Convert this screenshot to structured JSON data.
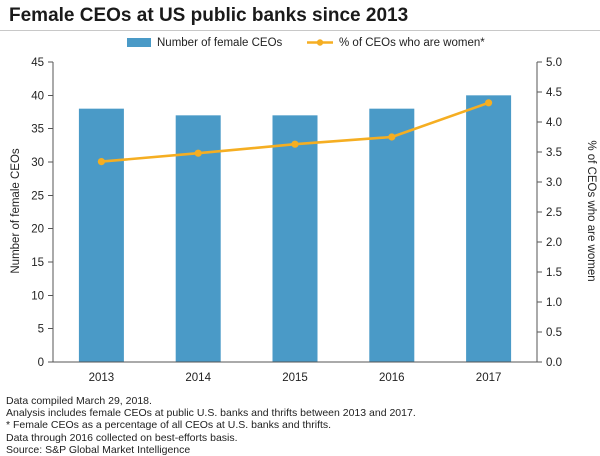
{
  "chart_data": {
    "type": "bar",
    "title": "Female CEOs at US public banks since 2013",
    "categories": [
      "2013",
      "2014",
      "2015",
      "2016",
      "2017"
    ],
    "series": [
      {
        "name": "Number of female CEOs",
        "type": "bar",
        "axis": "left",
        "color": "#4a9ac7",
        "values": [
          38,
          37,
          37,
          38,
          40
        ]
      },
      {
        "name": "% of CEOs who are women*",
        "type": "line",
        "axis": "right",
        "color": "#f5ae22",
        "values": [
          3.34,
          3.48,
          3.63,
          3.75,
          4.32
        ]
      }
    ],
    "y_left": {
      "label": "Number of female CEOs",
      "ylim": [
        0,
        45
      ],
      "ticks": [
        "0",
        "5",
        "10",
        "15",
        "20",
        "25",
        "30",
        "35",
        "40",
        "45"
      ]
    },
    "y_right": {
      "label": "% of CEOs who are women",
      "ylim": [
        0,
        5
      ],
      "ticks": [
        "0.0",
        "0.5",
        "1.0",
        "1.5",
        "2.0",
        "2.5",
        "3.0",
        "3.5",
        "4.0",
        "4.5",
        "5.0"
      ]
    },
    "grid": false,
    "legend": "top-center"
  },
  "notes": [
    "Data compiled March 29, 2018.",
    "Analysis includes female CEOs at public U.S. banks and thrifts between 2013 and 2017.",
    "* Female CEOs as a percentage of all CEOs at U.S. banks and thrifts.",
    "Data through 2016 collected on best-efforts basis.",
    "Source: S&P Global Market Intelligence"
  ]
}
